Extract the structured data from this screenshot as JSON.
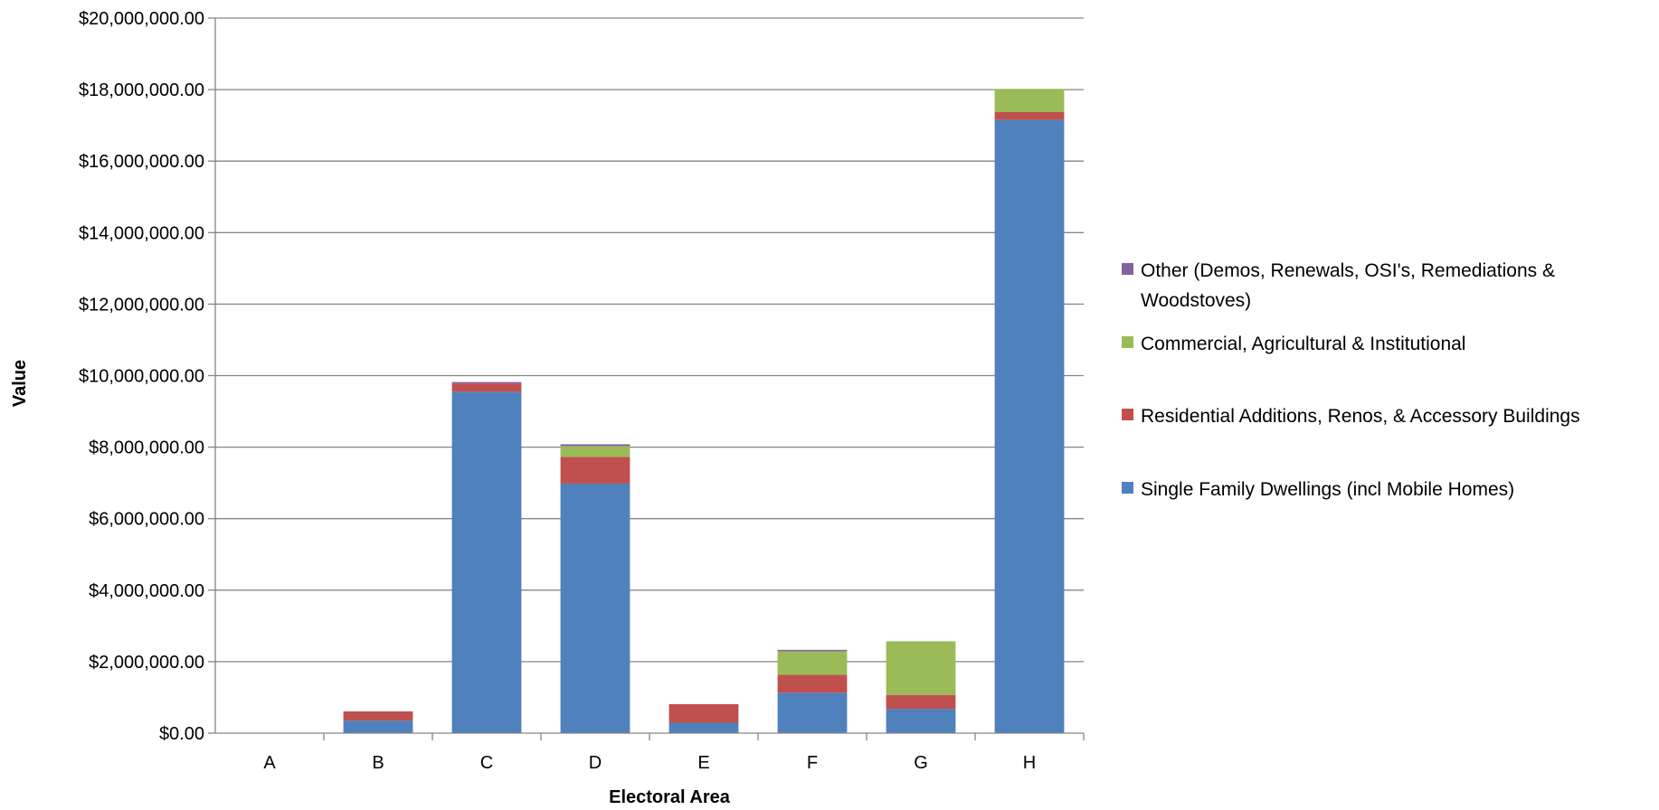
{
  "chart_data": {
    "type": "bar",
    "stacked": true,
    "xlabel": "Electoral Area",
    "ylabel": "Value",
    "ylim": [
      0,
      20000000
    ],
    "ytick_step": 2000000,
    "yticks": [
      "$0.00",
      "$2,000,000.00",
      "$4,000,000.00",
      "$6,000,000.00",
      "$8,000,000.00",
      "$10,000,000.00",
      "$12,000,000.00",
      "$14,000,000.00",
      "$16,000,000.00",
      "$18,000,000.00",
      "$20,000,000.00"
    ],
    "categories": [
      "A",
      "B",
      "C",
      "D",
      "E",
      "F",
      "G",
      "H"
    ],
    "grid": "horizontal major",
    "legend_position": "right",
    "series": [
      {
        "name": "Single Family Dwellings (incl Mobile Homes)",
        "color": "#4F81BD",
        "values": [
          0,
          350000,
          9550000,
          6980000,
          290000,
          1130000,
          680000,
          17150000
        ]
      },
      {
        "name": "Residential Additions, Renos, & Accessory Buildings",
        "color": "#C0504D",
        "values": [
          0,
          260000,
          230000,
          750000,
          520000,
          500000,
          390000,
          220000
        ]
      },
      {
        "name": "Commercial, Agricultural & Institutional",
        "color": "#9BBB59",
        "values": [
          0,
          0,
          0,
          300000,
          0,
          660000,
          1500000,
          650000
        ]
      },
      {
        "name": "Other (Demos, Renewals, OSI's, Remediations & Woodstoves)",
        "color": "#8064A2",
        "values": [
          0,
          0,
          40000,
          50000,
          0,
          40000,
          0,
          0
        ]
      }
    ],
    "legend_order": [
      3,
      2,
      1,
      0
    ],
    "legend_lines": [
      [
        "Other (Demos, Renewals, OSI's, Remediations &",
        "Woodstoves)"
      ],
      [
        "Commercial, Agricultural & Institutional"
      ],
      [
        "Residential Additions, Renos, & Accessory Buildings"
      ],
      [
        "Single Family Dwellings (incl Mobile Homes)"
      ]
    ]
  }
}
